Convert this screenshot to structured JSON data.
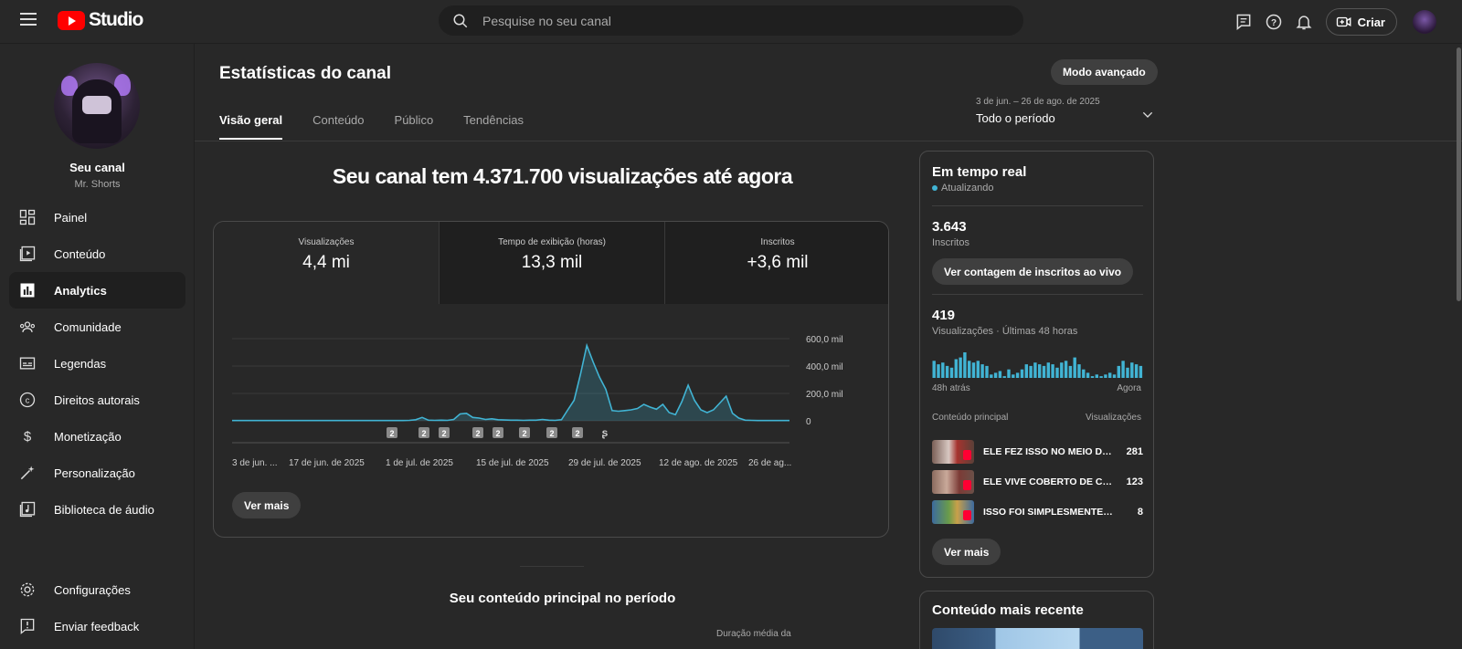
{
  "app": {
    "logo_text": "Studio"
  },
  "search": {
    "placeholder": "Pesquise no seu canal"
  },
  "topbar": {
    "create_label": "Criar"
  },
  "channel": {
    "name": "Seu canal",
    "handle": "Mr. Shorts"
  },
  "sidebar": {
    "items": [
      {
        "label": "Painel",
        "icon": "dashboard-icon",
        "active": false
      },
      {
        "label": "Conteúdo",
        "icon": "content-icon",
        "active": false
      },
      {
        "label": "Analytics",
        "icon": "analytics-icon",
        "active": true
      },
      {
        "label": "Comunidade",
        "icon": "community-icon",
        "active": false
      },
      {
        "label": "Legendas",
        "icon": "subtitles-icon",
        "active": false
      },
      {
        "label": "Direitos autorais",
        "icon": "copyright-icon",
        "active": false
      },
      {
        "label": "Monetização",
        "icon": "monetization-icon",
        "active": false
      },
      {
        "label": "Personalização",
        "icon": "customization-icon",
        "active": false
      },
      {
        "label": "Biblioteca de áudio",
        "icon": "audio-library-icon",
        "active": false
      }
    ],
    "bottom": [
      {
        "label": "Configurações",
        "icon": "settings-icon"
      },
      {
        "label": "Enviar feedback",
        "icon": "feedback-icon"
      }
    ]
  },
  "page": {
    "title": "Estatísticas do canal",
    "advanced_mode": "Modo avançado",
    "date_range_small": "3 de jun. – 26 de ago. de 2025",
    "date_range_main": "Todo o período",
    "tabs": [
      "Visão geral",
      "Conteúdo",
      "Público",
      "Tendências"
    ],
    "active_tab": 0,
    "headline": "Seu canal tem 4.371.700 visualizações até agora",
    "metrics": [
      {
        "label": "Visualizações",
        "value": "4,4 mi"
      },
      {
        "label": "Tempo de exibição (horas)",
        "value": "13,3 mil"
      },
      {
        "label": "Inscritos",
        "value": "+3,6 mil"
      }
    ],
    "see_more": "Ver mais",
    "section_title": "Seu conteúdo principal no período",
    "column_peek": "Duração média da"
  },
  "chart_data": {
    "type": "line",
    "series": [
      {
        "values": [
          2000,
          2000,
          2000,
          2000,
          2000,
          2000,
          2000,
          2000,
          2000,
          2000,
          2000,
          2000,
          2000,
          2000,
          2000,
          2000,
          2000,
          2000,
          2000,
          2000,
          2000,
          2000,
          2000,
          2000,
          2000,
          2000,
          2000,
          2000,
          3000,
          8000,
          25000,
          5000,
          3000,
          5000,
          3000,
          10000,
          50000,
          55000,
          25000,
          20000,
          10000,
          15000,
          8000,
          6000,
          5000,
          5000,
          3000,
          5000,
          5000,
          10000,
          5000,
          3000,
          8000,
          80000,
          150000,
          340000,
          550000,
          430000,
          320000,
          230000,
          75000,
          70000,
          75000,
          80000,
          90000,
          120000,
          100000,
          85000,
          120000,
          60000,
          45000,
          140000,
          260000,
          150000,
          80000,
          60000,
          80000,
          130000,
          180000,
          55000,
          20000,
          5000,
          3000,
          2000,
          2000,
          2000,
          2000,
          2000,
          2000
        ]
      }
    ],
    "x_tick_labels": [
      "3 de jun. ...",
      "17 de jun. de 2025",
      "1 de jul. de 2025",
      "15 de jul. de 2025",
      "29 de jul. de 2025",
      "12 de ago. de 2025",
      "26 de ag..."
    ],
    "y_tick_labels": [
      "600,0 mil",
      "400,0 mil",
      "200,0 mil",
      "0"
    ],
    "ylim": [
      0,
      600000
    ],
    "grid": true,
    "markers": [
      "2",
      "2",
      "2",
      "2",
      "2",
      "2",
      "2",
      "2",
      "shorts"
    ],
    "colors": {
      "line": "#41b4d4",
      "fill": "#41b4d4"
    }
  },
  "realtime": {
    "title": "Em tempo real",
    "status": "Atualizando",
    "subs_value": "3.643",
    "subs_label": "Inscritos",
    "subs_button": "Ver contagem de inscritos ao vivo",
    "views_value": "419",
    "views_label": "Visualizações · Últimas 48 horas",
    "bars": [
      10,
      8,
      9,
      7,
      6,
      11,
      12,
      15,
      10,
      9,
      10,
      8,
      7,
      2,
      3,
      4,
      1,
      5,
      2,
      3,
      5,
      8,
      7,
      9,
      8,
      7,
      9,
      8,
      6,
      9,
      10,
      7,
      12,
      8,
      5,
      3,
      1,
      2,
      1,
      2,
      3,
      2,
      7,
      10,
      6,
      9,
      8,
      7
    ],
    "axis_left": "48h atrás",
    "axis_right": "Agora",
    "content_header": "Conteúdo principal",
    "views_header": "Visualizações",
    "rows": [
      {
        "title": "ELE FEZ ISSO NO MEIO DA...",
        "views": "281"
      },
      {
        "title": "ELE VIVE COBERTO DE CA...",
        "views": "123"
      },
      {
        "title": "ISSO FOI SIMPLESMENTE IN...",
        "views": "8"
      }
    ],
    "see_more": "Ver mais"
  },
  "recent": {
    "title": "Conteúdo mais recente"
  }
}
